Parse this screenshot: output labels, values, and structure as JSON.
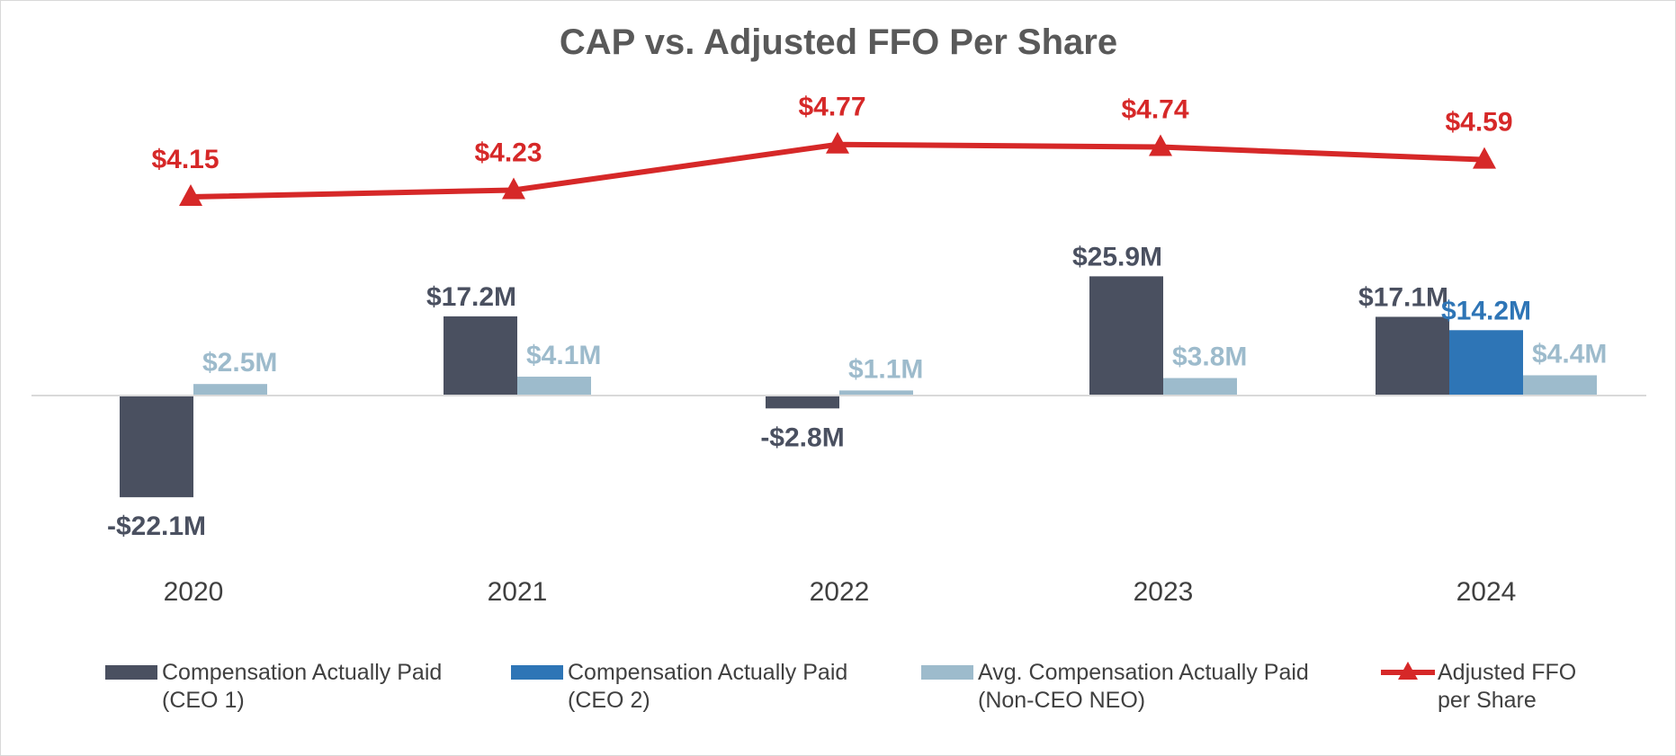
{
  "chart_data": {
    "type": "bar",
    "title": "CAP vs. Adjusted FFO Per Share",
    "categories": [
      "2020",
      "2021",
      "2022",
      "2023",
      "2024"
    ],
    "colors": {
      "ceo1": "#4a5060",
      "ceo2": "#2e75b6",
      "neo": "#9dbbcc",
      "ffo": "#d62828",
      "baseline": "#d9d9d9"
    },
    "series": [
      {
        "key": "ceo1",
        "name": "Compensation Actually Paid (CEO 1)",
        "legend_lines": [
          "Compensation Actually Paid",
          "(CEO 1)"
        ],
        "values": [
          -22.1,
          17.2,
          -2.8,
          25.9,
          17.1
        ],
        "labels": [
          "-$22.1M",
          "$17.2M",
          "-$2.8M",
          "$25.9M",
          "$17.1M"
        ]
      },
      {
        "key": "ceo2",
        "name": "Compensation Actually Paid (CEO 2)",
        "legend_lines": [
          "Compensation Actually Paid",
          "(CEO 2)"
        ],
        "values": [
          null,
          null,
          null,
          null,
          14.2
        ],
        "labels": [
          null,
          null,
          null,
          null,
          "$14.2M"
        ]
      },
      {
        "key": "neo",
        "name": "Avg. Compensation Actually Paid (Non-CEO NEO)",
        "legend_lines": [
          "Avg. Compensation Actually Paid",
          "(Non-CEO NEO)"
        ],
        "values": [
          2.5,
          4.1,
          1.1,
          3.8,
          4.4
        ],
        "labels": [
          "$2.5M",
          "$4.1M",
          "$1.1M",
          "$3.8M",
          "$4.4M"
        ]
      }
    ],
    "line_series": {
      "key": "ffo",
      "name": "Adjusted FFO per Share",
      "legend_lines": [
        "Adjusted FFO",
        "per Share"
      ],
      "marker": "triangle",
      "values": [
        4.15,
        4.23,
        4.77,
        4.74,
        4.59
      ],
      "labels": [
        "$4.15",
        "$4.23",
        "$4.77",
        "$4.74",
        "$4.59"
      ]
    },
    "ylabel": "",
    "xlabel": "",
    "legend_position": "bottom",
    "grid": false
  }
}
